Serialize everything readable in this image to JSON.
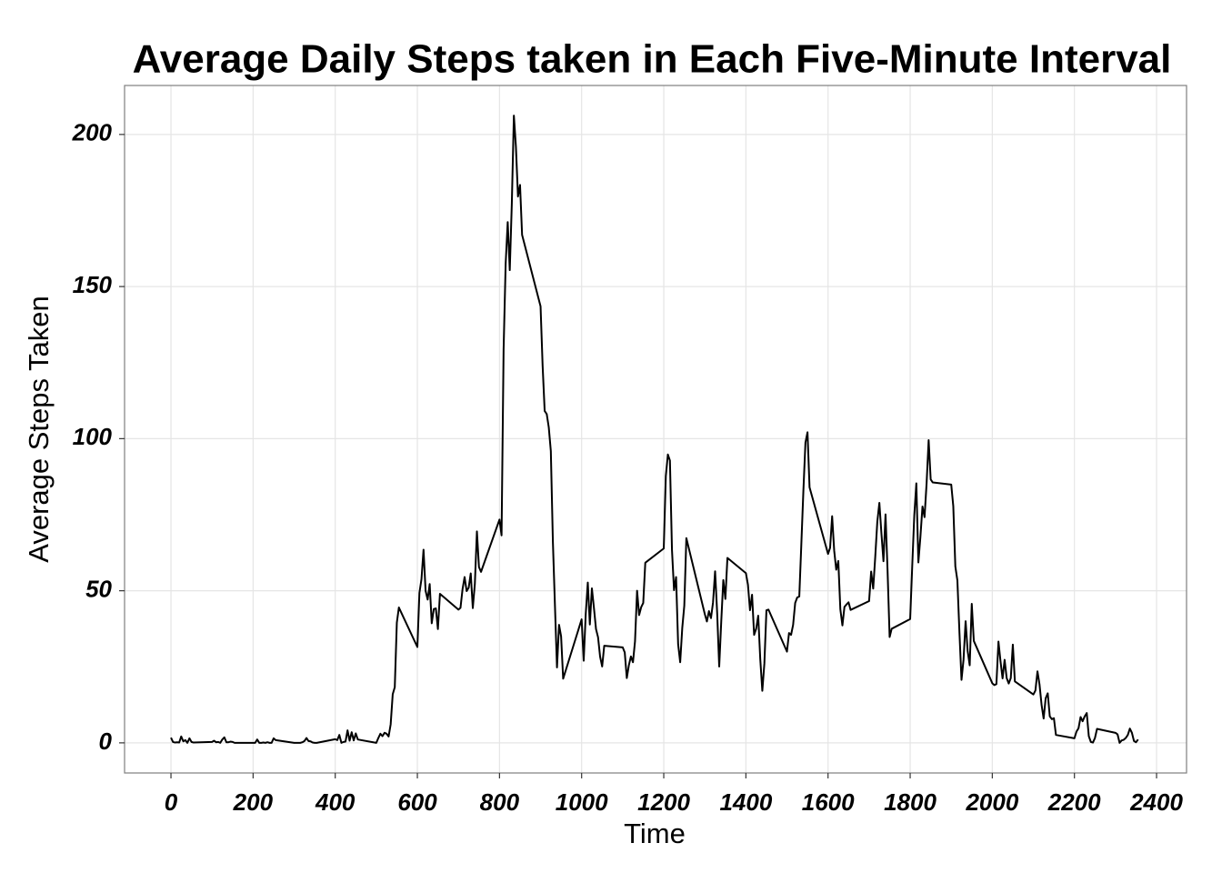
{
  "chart_data": {
    "type": "line",
    "title": "Average Daily Steps taken in Each Five-Minute Interval",
    "x_label": "Time",
    "y_label": "Average Steps Taken",
    "x": [
      0,
      5,
      10,
      15,
      20,
      25,
      30,
      35,
      40,
      45,
      50,
      55,
      100,
      105,
      110,
      115,
      120,
      125,
      130,
      135,
      140,
      145,
      150,
      155,
      200,
      205,
      210,
      215,
      220,
      225,
      230,
      235,
      240,
      245,
      250,
      255,
      300,
      305,
      310,
      315,
      320,
      325,
      330,
      335,
      340,
      345,
      350,
      355,
      400,
      405,
      410,
      415,
      420,
      425,
      430,
      435,
      440,
      445,
      450,
      455,
      500,
      505,
      510,
      515,
      520,
      525,
      530,
      535,
      540,
      545,
      550,
      555,
      600,
      605,
      610,
      615,
      620,
      625,
      630,
      635,
      640,
      645,
      650,
      655,
      700,
      705,
      710,
      715,
      720,
      725,
      730,
      735,
      740,
      745,
      750,
      755,
      800,
      805,
      810,
      815,
      820,
      825,
      830,
      835,
      840,
      845,
      850,
      855,
      900,
      905,
      910,
      915,
      920,
      925,
      930,
      935,
      940,
      945,
      950,
      955,
      1000,
      1005,
      1010,
      1015,
      1020,
      1025,
      1030,
      1035,
      1040,
      1045,
      1050,
      1055,
      1100,
      1105,
      1110,
      1115,
      1120,
      1125,
      1130,
      1135,
      1140,
      1145,
      1150,
      1155,
      1200,
      1205,
      1210,
      1215,
      1220,
      1225,
      1230,
      1235,
      1240,
      1245,
      1250,
      1255,
      1300,
      1305,
      1310,
      1315,
      1320,
      1325,
      1330,
      1335,
      1340,
      1345,
      1350,
      1355,
      1400,
      1405,
      1410,
      1415,
      1420,
      1425,
      1430,
      1435,
      1440,
      1445,
      1450,
      1455,
      1500,
      1505,
      1510,
      1515,
      1520,
      1525,
      1530,
      1535,
      1540,
      1545,
      1550,
      1555,
      1600,
      1605,
      1610,
      1615,
      1620,
      1625,
      1630,
      1635,
      1640,
      1645,
      1650,
      1655,
      1700,
      1705,
      1710,
      1715,
      1720,
      1725,
      1730,
      1735,
      1740,
      1745,
      1750,
      1755,
      1800,
      1805,
      1810,
      1815,
      1820,
      1825,
      1830,
      1835,
      1840,
      1845,
      1850,
      1855,
      1900,
      1905,
      1910,
      1915,
      1920,
      1925,
      1930,
      1935,
      1940,
      1945,
      1950,
      1955,
      2000,
      2005,
      2010,
      2015,
      2020,
      2025,
      2030,
      2035,
      2040,
      2045,
      2050,
      2055,
      2100,
      2105,
      2110,
      2115,
      2120,
      2125,
      2130,
      2135,
      2140,
      2145,
      2150,
      2155,
      2200,
      2205,
      2210,
      2215,
      2220,
      2225,
      2230,
      2235,
      2240,
      2245,
      2250,
      2255,
      2300,
      2305,
      2310,
      2315,
      2320,
      2325,
      2330,
      2335,
      2340,
      2345,
      2350,
      2355
    ],
    "values": [
      1.7,
      0.3,
      0.1,
      0.2,
      0.1,
      2.1,
      0.5,
      0.9,
      0,
      1.5,
      0.3,
      0.1,
      0.3,
      0.7,
      0.2,
      0.3,
      0,
      1.1,
      1.8,
      0.2,
      0.2,
      0.4,
      0.3,
      0,
      0,
      0,
      1.1,
      0,
      0,
      0.1,
      0,
      0.2,
      0,
      0,
      1.5,
      0.9,
      0,
      0,
      0,
      0,
      0.2,
      0.6,
      1.6,
      0.6,
      0.5,
      0.1,
      0,
      0,
      1.2,
      0.9,
      2.6,
      0,
      0.3,
      0.4,
      4.1,
      0.7,
      3.5,
      0.8,
      3.1,
      1.1,
      0,
      1.6,
      3.0,
      2.2,
      3.3,
      3.0,
      2.1,
      6.1,
      16.0,
      18.3,
      39.5,
      44.5,
      31.5,
      49.3,
      53.8,
      63.5,
      50.0,
      47.1,
      52.2,
      39.3,
      44.0,
      44.2,
      37.4,
      49.0,
      43.8,
      44.4,
      50.5,
      54.5,
      49.9,
      51.0,
      55.7,
      44.3,
      52.3,
      69.5,
      57.8,
      56.2,
      73.4,
      68.2,
      129.4,
      157.5,
      171.2,
      155.4,
      177.3,
      206.2,
      195.9,
      179.6,
      183.4,
      167.0,
      143.5,
      124.0,
      109.1,
      108.1,
      103.7,
      95.9,
      66.2,
      45.2,
      24.8,
      38.8,
      35.0,
      21.1,
      40.6,
      27.0,
      42.4,
      52.7,
      38.9,
      50.8,
      44.3,
      37.4,
      34.7,
      28.3,
      25.1,
      31.9,
      31.4,
      29.7,
      21.3,
      25.5,
      28.4,
      26.5,
      33.4,
      50.0,
      42.0,
      44.6,
      46.0,
      59.2,
      63.9,
      87.7,
      94.8,
      92.8,
      63.4,
      50.2,
      54.5,
      32.4,
      26.5,
      37.7,
      45.1,
      67.3,
      42.3,
      39.9,
      43.3,
      41.0,
      46.2,
      56.4,
      42.8,
      25.1,
      40.0,
      53.5,
      47.3,
      60.8,
      55.8,
      52.0,
      43.6,
      48.7,
      35.5,
      37.5,
      41.8,
      27.5,
      17.1,
      26.1,
      43.6,
      43.8,
      30.0,
      36.1,
      35.5,
      38.8,
      46.0,
      47.8,
      48.1,
      65.3,
      82.9,
      98.7,
      102.1,
      84.0,
      62.1,
      64.1,
      74.5,
      63.2,
      56.9,
      59.8,
      43.9,
      38.6,
      44.7,
      45.5,
      46.2,
      43.7,
      46.6,
      56.3,
      50.7,
      61.2,
      72.7,
      78.9,
      68.9,
      59.7,
      75.1,
      56.5,
      34.8,
      37.5,
      40.7,
      58.0,
      74.7,
      85.3,
      59.3,
      67.8,
      77.7,
      74.2,
      85.3,
      99.5,
      86.6,
      85.6,
      84.9,
      77.8,
      58.0,
      53.4,
      36.3,
      20.7,
      27.4,
      40.0,
      30.2,
      25.5,
      45.7,
      33.5,
      19.6,
      19.0,
      19.3,
      33.3,
      26.8,
      21.2,
      27.3,
      21.3,
      19.5,
      21.3,
      32.3,
      20.2,
      15.9,
      17.2,
      23.5,
      19.2,
      12.5,
      8.0,
      14.7,
      16.3,
      8.7,
      7.8,
      8.1,
      2.6,
      1.5,
      3.7,
      4.8,
      8.5,
      7.1,
      8.7,
      9.8,
      2.2,
      0.3,
      0.1,
      1.6,
      4.6,
      3.3,
      2.8,
      0,
      0.8,
      1.0,
      1.6,
      2.6,
      4.7,
      3.3,
      0.6,
      0.2,
      1.1
    ],
    "color": "#000000",
    "xlim": [
      -113,
      2473
    ],
    "ylim": [
      -9.9,
      216.1
    ],
    "xticks": [
      0,
      200,
      400,
      600,
      800,
      1000,
      1200,
      1400,
      1600,
      1800,
      2000,
      2200,
      2400
    ],
    "yticks": [
      0,
      50,
      100,
      150,
      200
    ],
    "grid": true
  }
}
